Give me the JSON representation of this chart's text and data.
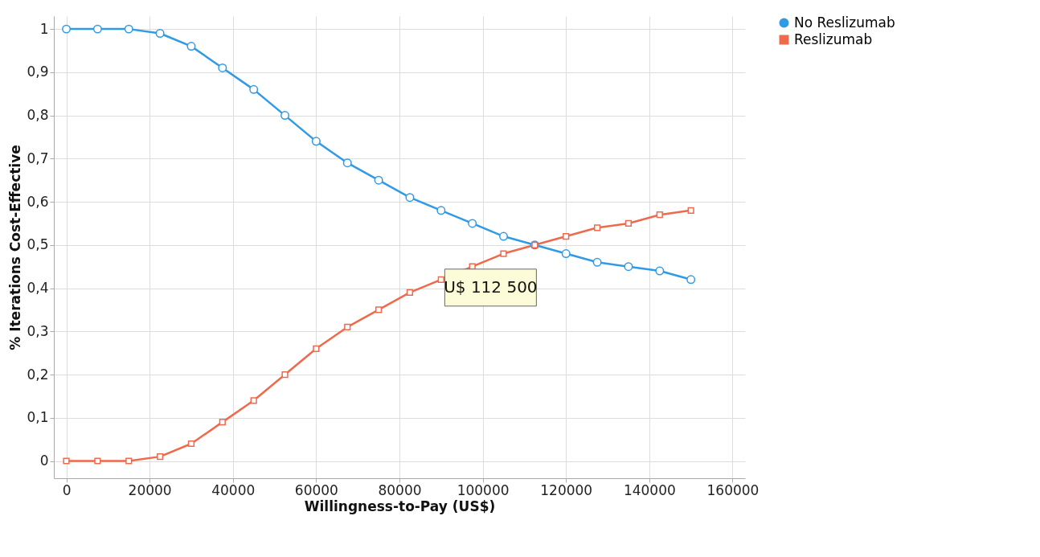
{
  "chart_data": {
    "type": "line",
    "xlabel": "Willingness-to-Pay (US$)",
    "ylabel": "% Iterations Cost-Effective",
    "x": [
      0,
      7500,
      15000,
      22500,
      30000,
      37500,
      45000,
      52500,
      60000,
      67500,
      75000,
      82500,
      90000,
      97500,
      105000,
      112500,
      120000,
      127500,
      135000,
      142500,
      150000
    ],
    "series": [
      {
        "name": "No Reslizumab",
        "color": "#2f9ae6",
        "marker": "circle",
        "values": [
          1.0,
          1.0,
          1.0,
          0.99,
          0.96,
          0.91,
          0.86,
          0.8,
          0.74,
          0.69,
          0.65,
          0.61,
          0.58,
          0.55,
          0.52,
          0.5,
          0.48,
          0.46,
          0.45,
          0.44,
          0.42
        ]
      },
      {
        "name": "Reslizumab",
        "color": "#ef6a4c",
        "marker": "square",
        "values": [
          0.0,
          0.0,
          0.0,
          0.01,
          0.04,
          0.09,
          0.14,
          0.2,
          0.26,
          0.31,
          0.35,
          0.39,
          0.42,
          0.45,
          0.48,
          0.5,
          0.52,
          0.54,
          0.55,
          0.57,
          0.58
        ]
      }
    ],
    "xlim": [
      -3000,
      163000
    ],
    "xticks": [
      0,
      20000,
      40000,
      60000,
      80000,
      100000,
      120000,
      140000,
      160000
    ],
    "ylim": [
      -0.04,
      1.03
    ],
    "yticks": [
      {
        "value": 0,
        "label": "0"
      },
      {
        "value": 0.1,
        "label": "0,1"
      },
      {
        "value": 0.2,
        "label": "0,2"
      },
      {
        "value": 0.3,
        "label": "0,3"
      },
      {
        "value": 0.4,
        "label": "0,4"
      },
      {
        "value": 0.5,
        "label": "0,5"
      },
      {
        "value": 0.6,
        "label": "0,6"
      },
      {
        "value": 0.7,
        "label": "0,7"
      },
      {
        "value": 0.8,
        "label": "0,8"
      },
      {
        "value": 0.9,
        "label": "0,9"
      },
      {
        "value": 1,
        "label": "1"
      }
    ],
    "annotations": [
      {
        "text": "U$ 112 500",
        "x": 112500,
        "y": 0.5
      }
    ],
    "grid": true,
    "legend": "top right",
    "line_style": "solid"
  }
}
